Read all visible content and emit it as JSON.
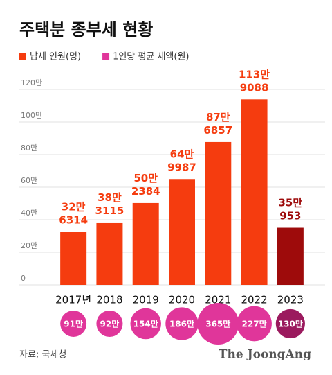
{
  "chart_data": {
    "type": "bar",
    "title": "주택분 종부세 현황",
    "source": "자료: 국세청",
    "brand": "The JoongAng",
    "categories": [
      "2017년",
      "2018",
      "2019",
      "2020",
      "2021",
      "2022",
      "2023"
    ],
    "ylim": [
      0,
      1200000
    ],
    "yticks": [
      0,
      {
        "value": 200000,
        "label": "20만"
      },
      {
        "value": 400000,
        "label": "40만"
      },
      {
        "value": 600000,
        "label": "60만"
      },
      {
        "value": 800000,
        "label": "80만"
      },
      {
        "value": 1000000,
        "label": "100만"
      },
      {
        "value": 1200000,
        "label": "120만"
      }
    ],
    "grid": true,
    "series": [
      {
        "name": "납세 인원(명)",
        "color": "#f53c0f",
        "colors": [
          "#f53c0f",
          "#f53c0f",
          "#f53c0f",
          "#f53c0f",
          "#f53c0f",
          "#f53c0f",
          "#9e0b0b"
        ],
        "values": [
          326314,
          383115,
          502384,
          649987,
          876857,
          1139088,
          350953
        ],
        "value_labels": [
          "32만 6314",
          "38만 3115",
          "50만 2384",
          "64만 9987",
          "87만 6857",
          "113만 9088",
          "35만 953"
        ]
      },
      {
        "name": "1인당 평균 세액(원)",
        "type": "bubble",
        "color": "#e0369a",
        "colors": [
          "#e0369a",
          "#e0369a",
          "#e0369a",
          "#e0369a",
          "#e0369a",
          "#e0369a",
          "#9b1a5e"
        ],
        "values": [
          910000,
          920000,
          1540000,
          1860000,
          3650000,
          2270000,
          1300000
        ],
        "value_labels": [
          "91만",
          "92만",
          "154만",
          "186만",
          "365만",
          "227만",
          "130만"
        ]
      }
    ]
  }
}
